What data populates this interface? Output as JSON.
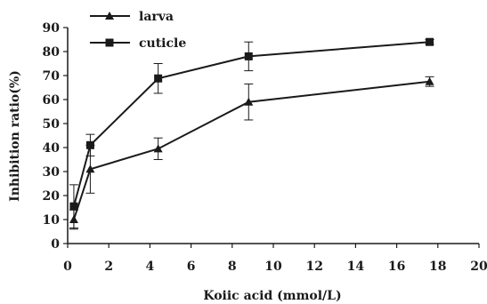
{
  "chart_data": {
    "type": "line",
    "title": "",
    "xlabel": "Koiic acid (mmol/L)",
    "ylabel": "Inhibition ratio(%)",
    "xlim": [
      0,
      20
    ],
    "ylim": [
      0,
      90
    ],
    "xticks": [
      0,
      2,
      4,
      6,
      8,
      10,
      12,
      14,
      16,
      18,
      20
    ],
    "yticks": [
      0,
      10,
      20,
      30,
      40,
      50,
      60,
      70,
      80,
      90
    ],
    "grid": false,
    "legend_position": "top-left",
    "series": [
      {
        "name": "larva",
        "marker": "triangle",
        "color": "#1a1a1a",
        "points": [
          {
            "x": 0.3,
            "y": 10.0,
            "err": 4.0
          },
          {
            "x": 1.1,
            "y": 31.0,
            "err": 10.0
          },
          {
            "x": 4.4,
            "y": 39.5,
            "err": 4.5
          },
          {
            "x": 8.8,
            "y": 59.0,
            "err": 7.5
          },
          {
            "x": 17.6,
            "y": 67.5,
            "err": 2.0
          }
        ]
      },
      {
        "name": "cuticle",
        "marker": "square",
        "color": "#1a1a1a",
        "points": [
          {
            "x": 0.3,
            "y": 15.5,
            "err": 9.0
          },
          {
            "x": 1.1,
            "y": 41.0,
            "err": 4.5
          },
          {
            "x": 4.4,
            "y": 68.8,
            "err": 6.2
          },
          {
            "x": 8.8,
            "y": 78.0,
            "err": 6.0
          },
          {
            "x": 17.6,
            "y": 84.0,
            "err": 1.0
          }
        ]
      }
    ]
  }
}
